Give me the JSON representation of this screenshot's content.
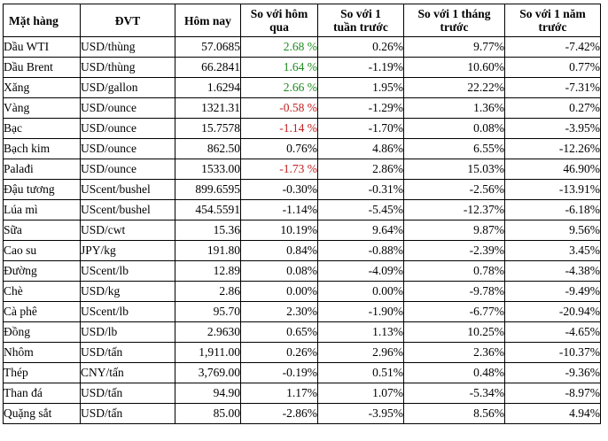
{
  "headers": {
    "item": "Mặt hàng",
    "unit": "ĐVT",
    "today": "Hôm nay",
    "vs_yesterday": [
      "So với hôm",
      "qua"
    ],
    "vs_week": [
      "So với 1",
      "tuần trước"
    ],
    "vs_month": [
      "So với 1 tháng",
      "trước"
    ],
    "vs_year": [
      "So với 1 năm",
      "trước"
    ]
  },
  "colors": {
    "positive": "#1e8a1e",
    "negative": "#c02020"
  },
  "rows": [
    {
      "item": "Dầu WTI",
      "unit": "USD/thùng",
      "today": "57.0685",
      "d1": "2.68 %",
      "w1": "0.26%",
      "m1": "9.77%",
      "y1": "-7.42%",
      "d1_color": "positive"
    },
    {
      "item": "Dầu Brent",
      "unit": "USD/thùng",
      "today": "66.2841",
      "d1": "1.64 %",
      "w1": "-1.19%",
      "m1": "10.60%",
      "y1": "0.77%",
      "d1_color": "positive"
    },
    {
      "item": "Xăng",
      "unit": "USD/gallon",
      "today": "1.6294",
      "d1": "2.66 %",
      "w1": "1.95%",
      "m1": "22.22%",
      "y1": "-7.31%",
      "d1_color": "positive"
    },
    {
      "item": "Vàng",
      "unit": "USD/ounce",
      "today": "1321.31",
      "d1": "-0.58 %",
      "w1": "-1.29%",
      "m1": "1.36%",
      "y1": "0.27%",
      "d1_color": "negative"
    },
    {
      "item": "Bạc",
      "unit": "USD/ounce",
      "today": "15.7578",
      "d1": "-1.14 %",
      "w1": "-1.70%",
      "m1": "0.08%",
      "y1": "-3.95%",
      "d1_color": "negative"
    },
    {
      "item": "Bạch kim",
      "unit": "USD/ounce",
      "today": "862.50",
      "d1": "0.76%",
      "w1": "4.86%",
      "m1": "6.55%",
      "y1": "-12.26%",
      "d1_color": "none"
    },
    {
      "item": "Palađi",
      "unit": "USD/ounce",
      "today": "1533.00",
      "d1": "-1.73 %",
      "w1": "2.86%",
      "m1": "15.03%",
      "y1": "46.90%",
      "d1_color": "negative"
    },
    {
      "item": "Đậu tương",
      "unit": "UScent/bushel",
      "today": "899.6595",
      "d1": "-0.30%",
      "w1": "-0.31%",
      "m1": "-2.56%",
      "y1": "-13.91%",
      "d1_color": "none"
    },
    {
      "item": "Lúa mì",
      "unit": "UScent/bushel",
      "today": "454.5591",
      "d1": "-1.14%",
      "w1": "-5.45%",
      "m1": "-12.37%",
      "y1": "-6.18%",
      "d1_color": "none"
    },
    {
      "item": "Sữa",
      "unit": "USD/cwt",
      "today": "15.36",
      "d1": "10.19%",
      "w1": "9.64%",
      "m1": "9.87%",
      "y1": "9.56%",
      "d1_color": "none"
    },
    {
      "item": "Cao su",
      "unit": "JPY/kg",
      "today": "191.80",
      "d1": "0.84%",
      "w1": "-0.88%",
      "m1": "-2.39%",
      "y1": "3.45%",
      "d1_color": "none"
    },
    {
      "item": "Đường",
      "unit": "UScent/lb",
      "today": "12.89",
      "d1": "0.08%",
      "w1": "-4.09%",
      "m1": "0.78%",
      "y1": "-4.38%",
      "d1_color": "none"
    },
    {
      "item": "Chè",
      "unit": "USD/kg",
      "today": "2.86",
      "d1": "0.00%",
      "w1": "0.00%",
      "m1": "-9.78%",
      "y1": "-9.49%",
      "d1_color": "none"
    },
    {
      "item": "Cà phê",
      "unit": "UScent/lb",
      "today": "95.70",
      "d1": "2.30%",
      "w1": "-1.90%",
      "m1": "-6.77%",
      "y1": "-20.94%",
      "d1_color": "none"
    },
    {
      "item": "Đồng",
      "unit": "USD/lb",
      "today": "2.9630",
      "d1": "0.65%",
      "w1": "1.13%",
      "m1": "10.25%",
      "y1": "-4.65%",
      "d1_color": "none"
    },
    {
      "item": "Nhôm",
      "unit": "USD/tấn",
      "today": "1,911.00",
      "d1": "0.26%",
      "w1": "2.96%",
      "m1": "2.36%",
      "y1": "-10.37%",
      "d1_color": "none"
    },
    {
      "item": "Thép",
      "unit": "CNY/tấn",
      "today": "3,769.00",
      "d1": "-0.19%",
      "w1": "0.51%",
      "m1": "0.48%",
      "y1": "-9.36%",
      "d1_color": "none"
    },
    {
      "item": "Than đá",
      "unit": "USD/tấn",
      "today": "94.90",
      "d1": "1.17%",
      "w1": "1.07%",
      "m1": "-5.34%",
      "y1": "-8.97%",
      "d1_color": "none"
    },
    {
      "item": "Quặng sắt",
      "unit": "USD/tấn",
      "today": "85.00",
      "d1": "-2.86%",
      "w1": "-3.95%",
      "m1": "8.56%",
      "y1": "4.94%",
      "d1_color": "none"
    }
  ]
}
